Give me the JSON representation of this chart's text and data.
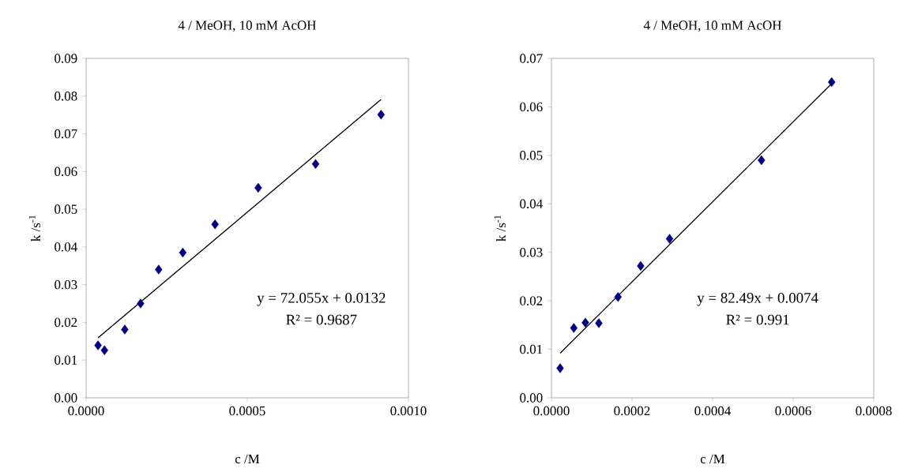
{
  "chart_data": [
    {
      "type": "scatter",
      "title": "4 / MeOH, 10 mM AcOH",
      "xlabel": "c /M",
      "ylabel": "k /s$^{-1}$",
      "xlim": [
        0,
        0.001
      ],
      "xticks": [
        {
          "value": 0,
          "label": "0.0000"
        },
        {
          "value": 0.0005,
          "label": "0.0005"
        },
        {
          "value": 0.001,
          "label": "0.0010"
        }
      ],
      "ylim": [
        0,
        0.09
      ],
      "yticks": [
        {
          "value": 0,
          "label": "0.00"
        },
        {
          "value": 0.01,
          "label": "0.01"
        },
        {
          "value": 0.02,
          "label": "0.02"
        },
        {
          "value": 0.03,
          "label": "0.03"
        },
        {
          "value": 0.04,
          "label": "0.04"
        },
        {
          "value": 0.05,
          "label": "0.05"
        },
        {
          "value": 0.06,
          "label": "0.06"
        },
        {
          "value": 0.07,
          "label": "0.07"
        },
        {
          "value": 0.08,
          "label": "0.08"
        },
        {
          "value": 0.09,
          "label": "0.09"
        }
      ],
      "series": [
        {
          "color": "#000080",
          "marker": "diamond",
          "x": [
            3.7e-05,
            5.7e-05,
            0.00012,
            0.000169,
            0.000225,
            0.0003,
            0.0004,
            0.000534,
            0.000712,
            0.000915
          ],
          "values": [
            0.0139,
            0.0126,
            0.0181,
            0.025,
            0.034,
            0.0385,
            0.046,
            0.0557,
            0.062,
            0.0751
          ]
        },
        {
          "type": "line",
          "color": "#000000",
          "marker": "none",
          "line_style": "solid",
          "x": [
            3.7e-05,
            0.000915
          ],
          "values": [
            0.0159,
            0.0791
          ]
        }
      ],
      "annotations": [
        "y = 72.055x + 0.0132",
        "R² = 0.9687"
      ]
    },
    {
      "type": "scatter",
      "title": "4 / MeOH, 10 mM AcOH",
      "xlabel": "c /M",
      "ylabel": "k /s$^{-1}$",
      "xlim": [
        0,
        0.0008
      ],
      "xticks": [
        {
          "value": 0,
          "label": "0.0000"
        },
        {
          "value": 0.0002,
          "label": "0.0002"
        },
        {
          "value": 0.0004,
          "label": "0.0004"
        },
        {
          "value": 0.0006,
          "label": "0.0006"
        },
        {
          "value": 0.0008,
          "label": "0.0008"
        }
      ],
      "ylim": [
        0,
        0.07
      ],
      "yticks": [
        {
          "value": 0,
          "label": "0.00"
        },
        {
          "value": 0.01,
          "label": "0.01"
        },
        {
          "value": 0.02,
          "label": "0.02"
        },
        {
          "value": 0.03,
          "label": "0.03"
        },
        {
          "value": 0.04,
          "label": "0.04"
        },
        {
          "value": 0.05,
          "label": "0.05"
        },
        {
          "value": 0.06,
          "label": "0.06"
        },
        {
          "value": 0.07,
          "label": "0.07"
        }
      ],
      "series": [
        {
          "color": "#000080",
          "marker": "diamond",
          "x": [
            2.16e-05,
            5.55e-05,
            8.42e-05,
            0.0001176,
            0.0001652,
            0.0002214,
            0.0002932,
            0.0005212,
            0.0006955
          ],
          "values": [
            0.0061,
            0.0144,
            0.0155,
            0.0154,
            0.0208,
            0.0272,
            0.0328,
            0.049,
            0.0651
          ]
        },
        {
          "type": "line",
          "color": "#000000",
          "marker": "none",
          "line_style": "solid",
          "x": [
            2.16e-05,
            0.0006955
          ],
          "values": [
            0.0092,
            0.0648
          ]
        }
      ],
      "annotations": [
        "y = 82.49x + 0.0074",
        "R² = 0.991"
      ]
    }
  ]
}
